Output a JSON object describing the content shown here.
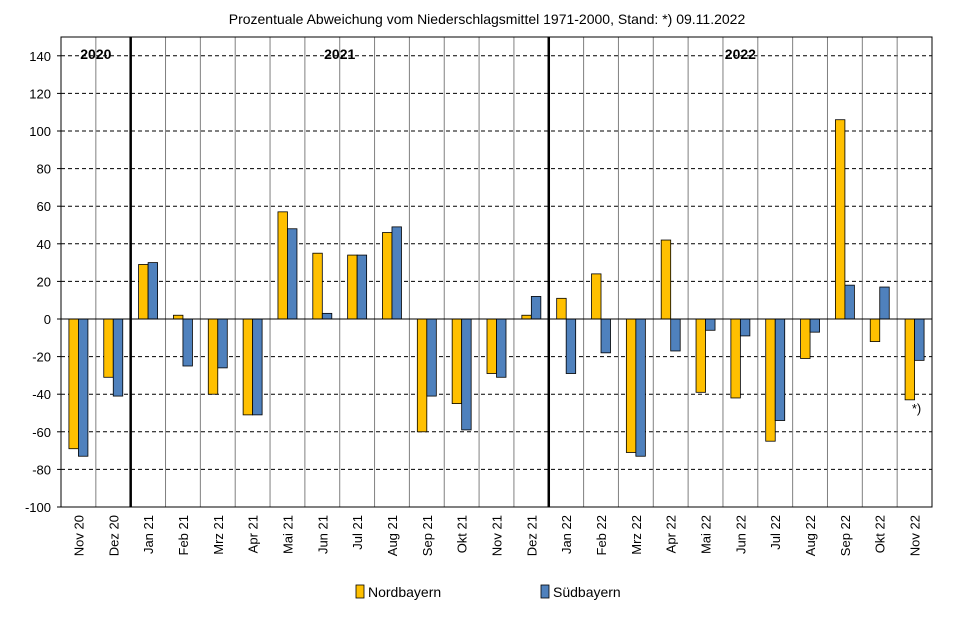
{
  "chart_data": {
    "type": "bar",
    "title": "Prozentuale Abweichung vom Niederschlagsmittel 1971-2000,  Stand: *) 09.11.2022",
    "categories": [
      "Nov 20",
      "Dez 20",
      "Jan 21",
      "Feb 21",
      "Mrz 21",
      "Apr 21",
      "Mai 21",
      "Jun 21",
      "Jul 21",
      "Aug 21",
      "Sep 21",
      "Okt 21",
      "Nov 21",
      "Dez 21",
      "Jan 22",
      "Feb 22",
      "Mrz 22",
      "Apr 22",
      "Mai 22",
      "Jun 22",
      "Jul 22",
      "Aug 22",
      "Sep 22",
      "Okt 22",
      "Nov 22"
    ],
    "series": [
      {
        "name": "Nordbayern",
        "color": "#FFC000",
        "values": [
          -69,
          -31,
          29,
          2,
          -40,
          -51,
          57,
          35,
          34,
          46,
          -60,
          -45,
          -29,
          2,
          11,
          24,
          -71,
          42,
          -39,
          -42,
          -65,
          -21,
          106,
          -12,
          -43
        ]
      },
      {
        "name": "Südbayern",
        "color": "#4F81BD",
        "values": [
          -73,
          -41,
          30,
          -25,
          -26,
          -51,
          48,
          3,
          34,
          49,
          -41,
          -59,
          -31,
          12,
          -29,
          -18,
          -73,
          -17,
          -6,
          -9,
          -54,
          -7,
          18,
          17,
          -22
        ]
      }
    ],
    "ylim": [
      -100,
      150
    ],
    "yticks": [
      -100,
      -80,
      -60,
      -40,
      -20,
      0,
      20,
      40,
      60,
      80,
      100,
      120,
      140
    ],
    "xlabel": "",
    "ylabel": "",
    "grid": true,
    "legend_position": "bottom",
    "year_labels": [
      {
        "label": "2020",
        "first": 0,
        "last": 1
      },
      {
        "label": "2021",
        "first": 2,
        "last": 13
      },
      {
        "label": "2022",
        "first": 14,
        "last": 24
      }
    ],
    "annotation": "*)",
    "annotation_category": "Nov 22"
  }
}
